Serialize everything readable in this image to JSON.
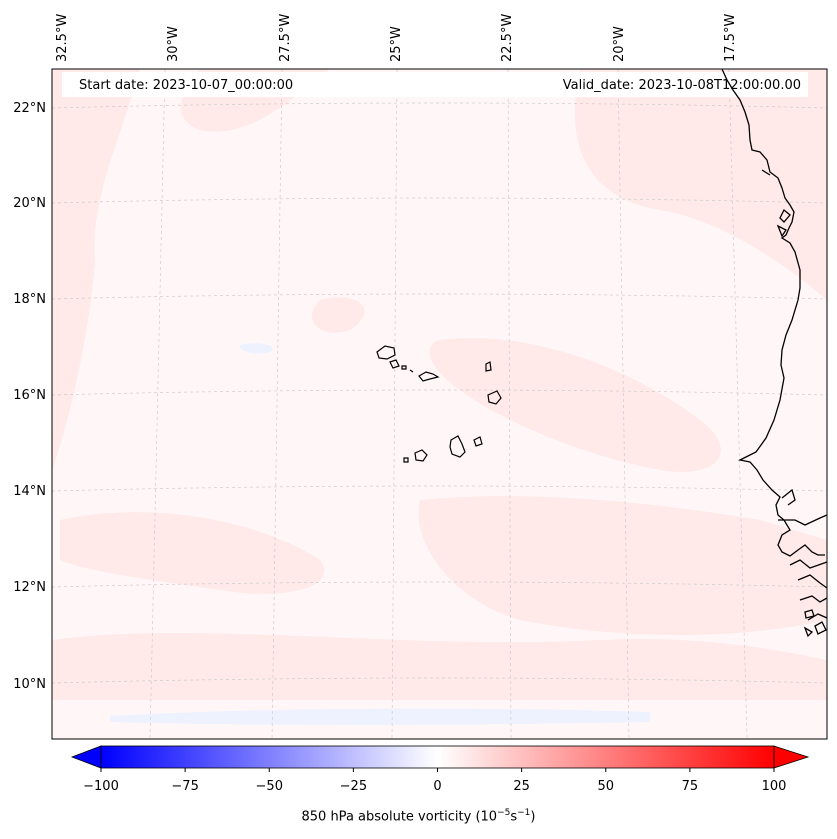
{
  "map": {
    "start_date": "Start date: 2023-10-07_00:00:00",
    "valid_date": "Valid_date: 2023-10-08T12:00:00.00",
    "longitude_labels": [
      "32.5°W",
      "30°W",
      "27.5°W",
      "25°W",
      "22.5°W",
      "20°W",
      "17.5°W"
    ],
    "latitude_labels": [
      "22°N",
      "20°N",
      "18°N",
      "16°N",
      "14°N",
      "12°N",
      "10°N"
    ],
    "variable": "850 hPa absolute vorticity",
    "units_base": "10",
    "units_exp1": "−5",
    "units_s": "s",
    "units_exp2": "−1"
  },
  "colorbar": {
    "ticks": [
      "−100",
      "−75",
      "−50",
      "−25",
      "0",
      "25",
      "50",
      "75",
      "100"
    ],
    "min": -100,
    "max": 100,
    "negative_color": "#0000ff",
    "neutral_color": "#ffffff",
    "positive_color": "#ff0000"
  },
  "colors": {
    "background_field": "#fff7f7",
    "light_positive": "#ffe6e6",
    "light_negative": "#eef2ff",
    "coastline": "#000000",
    "gridline": "#cccccc"
  }
}
